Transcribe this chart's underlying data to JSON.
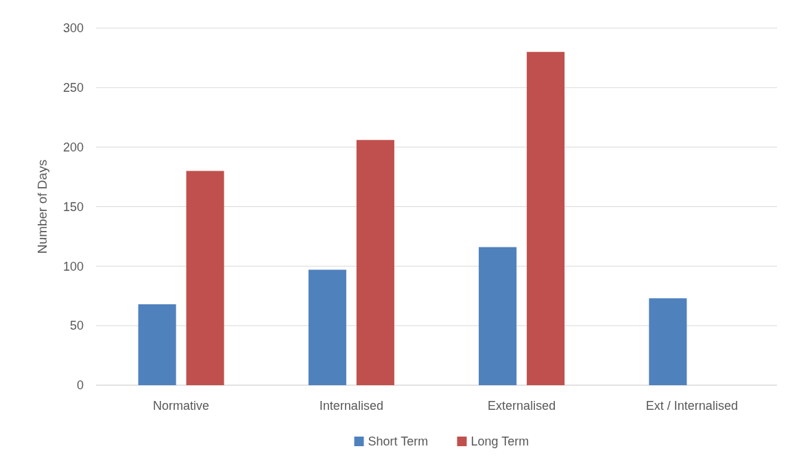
{
  "chart_data": {
    "type": "bar",
    "ylabel": "Number of Days",
    "categories": [
      "Normative",
      "Internalised",
      "Externalised",
      "Ext / Internalised"
    ],
    "series": [
      {
        "name": "Short Term",
        "color": "#4f81bd",
        "values": [
          68,
          97,
          116,
          73
        ]
      },
      {
        "name": "Long Term",
        "color": "#c0504d",
        "values": [
          180,
          206,
          280,
          null
        ]
      }
    ],
    "ylim": [
      0,
      300
    ],
    "yticks": [
      0,
      50,
      100,
      150,
      200,
      250,
      300
    ],
    "grid": "y",
    "legend": "bottom"
  }
}
